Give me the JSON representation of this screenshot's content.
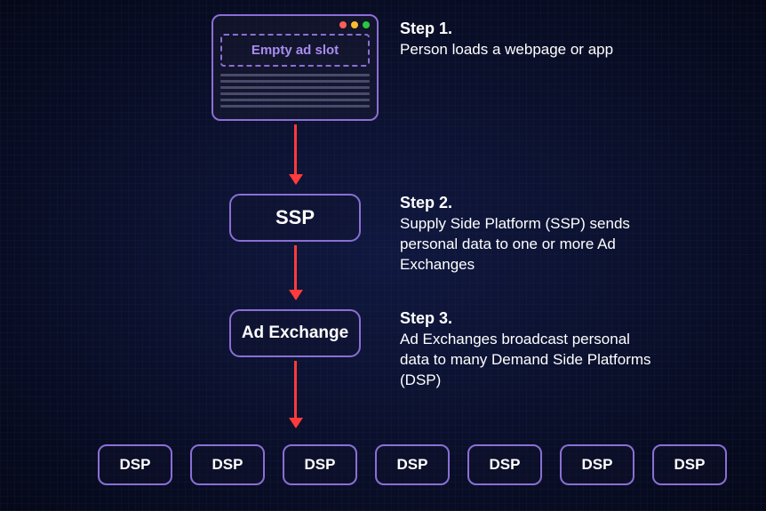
{
  "type": "flowchart",
  "background": {
    "base_color": "#0a0e2a",
    "grid_color": "#283250"
  },
  "colors": {
    "node_border": "#8a6fd6",
    "node_text": "#ffffff",
    "ad_slot_text": "#a98cf0",
    "arrow": "#ff3b3b",
    "step_text": "#ffffff",
    "traffic_red": "#ff5f57",
    "traffic_yellow": "#febc2e",
    "traffic_green": "#28c840",
    "text_line": "#4a4a6a"
  },
  "nodes": {
    "browser": {
      "ad_slot_label": "Empty ad slot",
      "num_text_lines": 6
    },
    "ssp": {
      "label": "SSP"
    },
    "ad_exchange": {
      "label": "Ad Exchange"
    },
    "dsp": {
      "label": "DSP",
      "count": 7
    }
  },
  "steps": {
    "s1": {
      "title": "Step 1.",
      "desc": "Person loads a webpage or app"
    },
    "s2": {
      "title": "Step 2.",
      "desc": "Supply Side Platform (SSP) sends personal data to one or more Ad Exchanges"
    },
    "s3": {
      "title": "Step 3.",
      "desc": "Ad Exchanges broadcast personal data to many Demand Side Platforms (DSP)"
    }
  },
  "typography": {
    "step_title_fontsize": 18,
    "step_desc_fontsize": 17,
    "node_label_fontsize": 22,
    "dsp_label_fontsize": 17
  }
}
